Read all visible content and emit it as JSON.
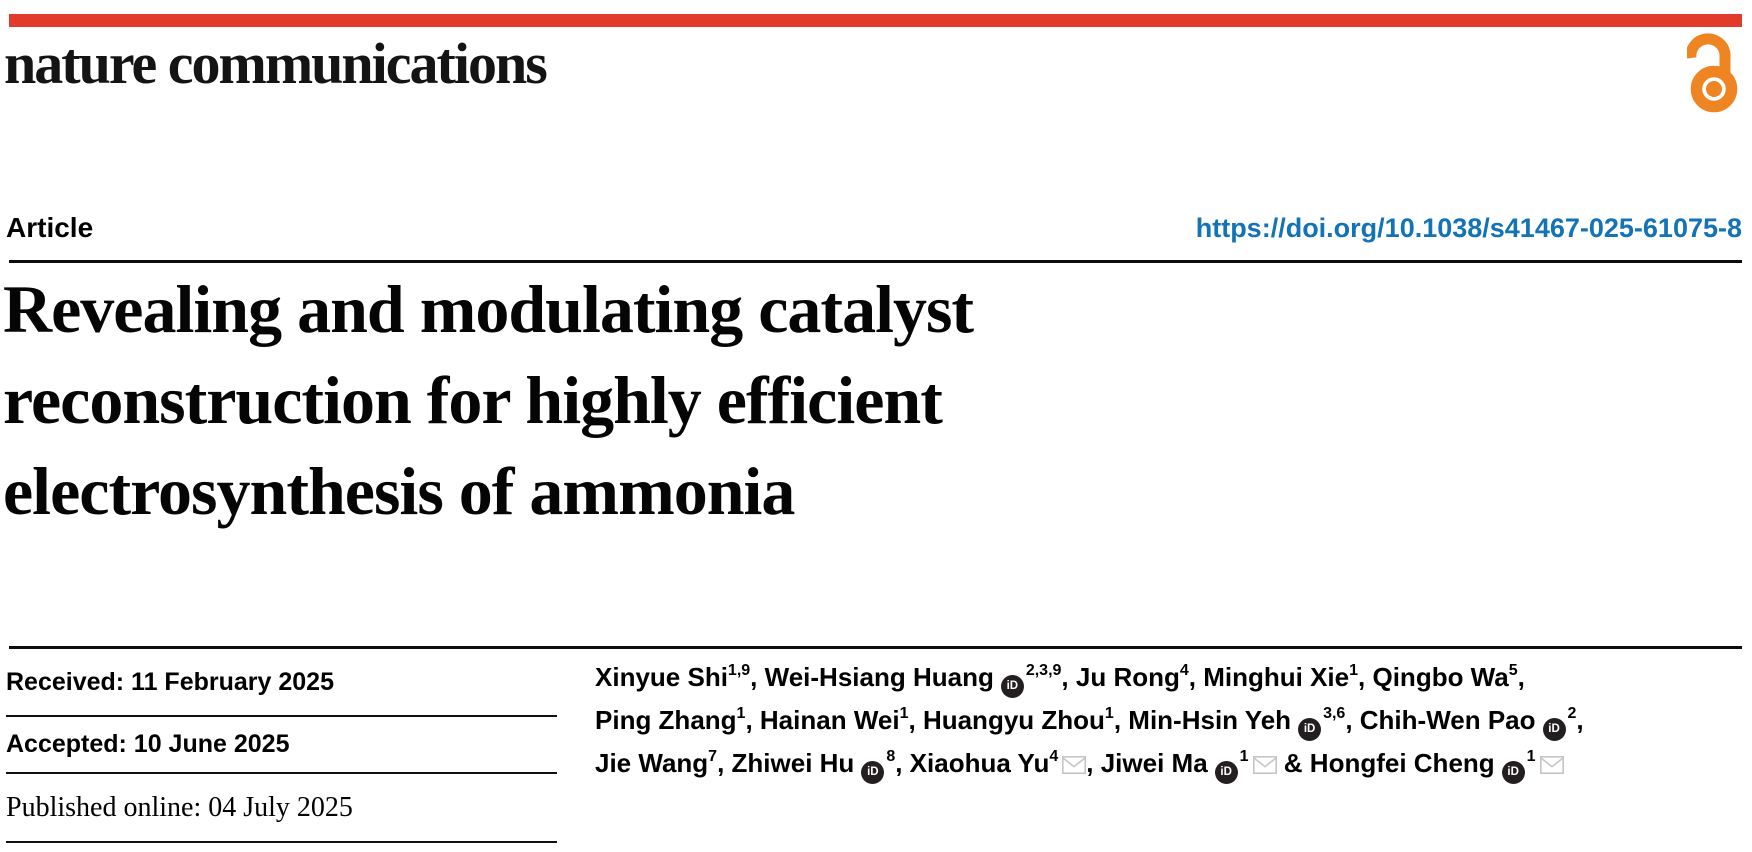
{
  "masthead": {
    "brand": "nature communications"
  },
  "header": {
    "article_label": "Article",
    "doi": "https://doi.org/10.1038/s41467-025-61075-8"
  },
  "title": "Revealing and modulating catalyst\nreconstruction for highly efficient\nelectrosynthesis of ammonia",
  "dates": [
    {
      "text": "Received: 11 February 2025"
    },
    {
      "text": "Accepted: 10 June 2025"
    },
    {
      "text": "Published online: 04 July 2025"
    }
  ],
  "authors": {
    "lines": [
      [
        {
          "name": "Xinyue Shi",
          "sup": "1,9",
          "orcid": false,
          "envelope": false,
          "sep": ", "
        },
        {
          "name": "Wei-Hsiang Huang",
          "sup": "2,3,9",
          "orcid": true,
          "envelope": false,
          "sep": ", "
        },
        {
          "name": "Ju Rong",
          "sup": "4",
          "orcid": false,
          "envelope": false,
          "sep": ", "
        },
        {
          "name": "Minghui Xie",
          "sup": "1",
          "orcid": false,
          "envelope": false,
          "sep": ", "
        },
        {
          "name": "Qingbo Wa",
          "sup": "5",
          "orcid": false,
          "envelope": false,
          "sep": ","
        }
      ],
      [
        {
          "name": "Ping Zhang",
          "sup": "1",
          "orcid": false,
          "envelope": false,
          "sep": ", "
        },
        {
          "name": "Hainan Wei",
          "sup": "1",
          "orcid": false,
          "envelope": false,
          "sep": ", "
        },
        {
          "name": "Huangyu Zhou",
          "sup": "1",
          "orcid": false,
          "envelope": false,
          "sep": ", "
        },
        {
          "name": "Min-Hsin Yeh",
          "sup": "3,6",
          "orcid": true,
          "envelope": false,
          "sep": ", "
        },
        {
          "name": "Chih-Wen Pao",
          "sup": "2",
          "orcid": true,
          "envelope": false,
          "sep": ","
        }
      ],
      [
        {
          "name": "Jie Wang",
          "sup": "7",
          "orcid": false,
          "envelope": false,
          "sep": ", "
        },
        {
          "name": "Zhiwei Hu",
          "sup": "8",
          "orcid": true,
          "envelope": false,
          "sep": ", "
        },
        {
          "name": "Xiaohua Yu",
          "sup": "4",
          "orcid": false,
          "envelope": true,
          "sep": ", "
        },
        {
          "name": "Jiwei Ma",
          "sup": "1",
          "orcid": true,
          "envelope": true,
          "sep": " & "
        },
        {
          "name": "Hongfei Cheng",
          "sup": "1",
          "orcid": true,
          "envelope": true,
          "sep": ""
        }
      ]
    ]
  },
  "icons": {
    "orcid_label": "iD",
    "open_access": "open-lock-icon",
    "email": "envelope-icon"
  },
  "colors": {
    "brand_red": "#E23B2C",
    "doi_blue": "#1273B6",
    "oa_orange": "#EF8522",
    "envelope_gray": "#C6C6C6",
    "orcid_black": "#231F20"
  }
}
